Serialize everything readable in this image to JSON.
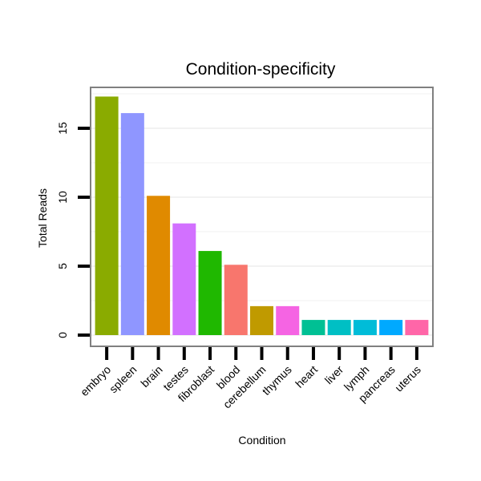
{
  "chart_data": {
    "type": "bar",
    "title": "Condition-specificity",
    "xlabel": "Condition",
    "ylabel": "Total Reads",
    "ylim": [
      -0.5,
      18
    ],
    "yticks": [
      0,
      5,
      10,
      15
    ],
    "ytick_labels": [
      "0",
      "5",
      "10",
      "15"
    ],
    "grid": true,
    "categories": [
      "embryo",
      "spleen",
      "brain",
      "testes",
      "fibroblast",
      "blood",
      "cerebellum",
      "thymus",
      "heart",
      "liver",
      "lymph",
      "pancreas",
      "uterus"
    ],
    "values": [
      17.3,
      16.1,
      10.1,
      8.1,
      6.1,
      5.1,
      2.1,
      2.1,
      1.1,
      1.1,
      1.1,
      1.1,
      1.1
    ],
    "colors": [
      "#8AAB00",
      "#8F96FF",
      "#E08A00",
      "#D270FF",
      "#1FB800",
      "#F8766D",
      "#C09A00",
      "#F564E3",
      "#00C094",
      "#00BFC4",
      "#00BCD8",
      "#00A9FF",
      "#FF66A8"
    ]
  }
}
